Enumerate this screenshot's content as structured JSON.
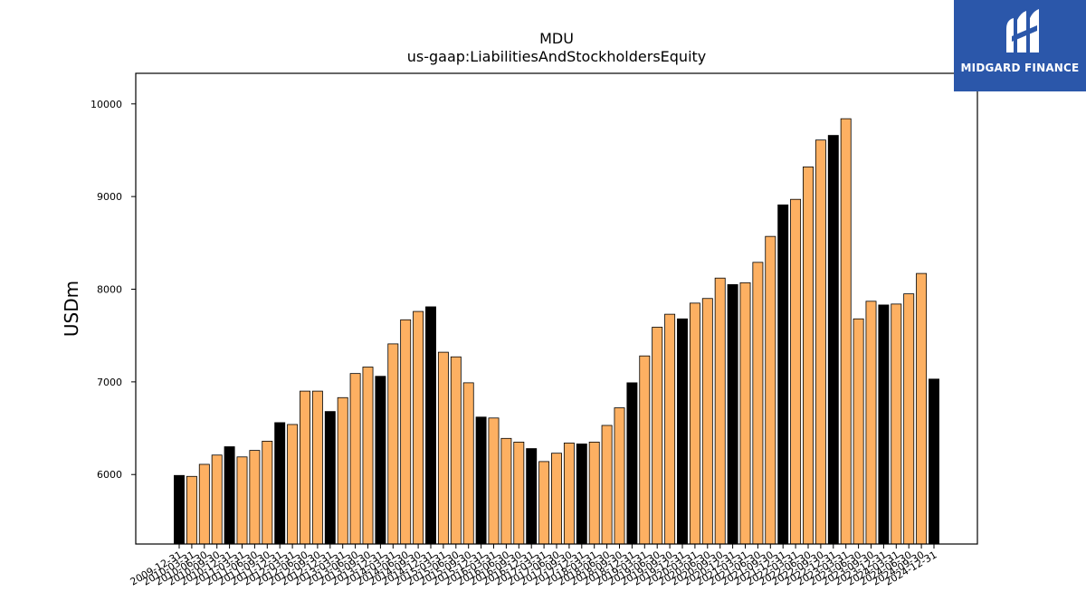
{
  "logo": {
    "brand_text": "MIDGARD FINANCE",
    "color": "#2b57aa"
  },
  "chart_data": {
    "type": "bar",
    "title": "MDU",
    "subtitle": "us-gaap:LiabilitiesAndStockholdersEquity",
    "ylabel": "USDm",
    "xlabel": "",
    "ylim": [
      5250,
      10330
    ],
    "yticks": [
      6000,
      7000,
      8000,
      9000,
      10000
    ],
    "grid": false,
    "colors": {
      "annual": "#000000",
      "quarterly": "#fdb062",
      "edge": "#000000"
    },
    "categories": [
      "2009-12-31",
      "2010-03-31",
      "2010-06-30",
      "2010-09-30",
      "2010-12-31",
      "2011-03-31",
      "2011-06-30",
      "2011-09-30",
      "2011-12-31",
      "2012-03-31",
      "2012-06-30",
      "2012-09-30",
      "2012-12-31",
      "2013-03-31",
      "2013-06-30",
      "2013-09-30",
      "2013-12-31",
      "2014-03-31",
      "2014-06-30",
      "2014-09-30",
      "2014-12-31",
      "2015-03-31",
      "2015-06-30",
      "2015-09-30",
      "2015-12-31",
      "2016-03-31",
      "2016-06-30",
      "2016-09-30",
      "2016-12-31",
      "2017-03-31",
      "2017-06-30",
      "2017-09-30",
      "2017-12-31",
      "2018-03-31",
      "2018-06-30",
      "2018-09-30",
      "2018-12-31",
      "2019-03-31",
      "2019-06-30",
      "2019-09-30",
      "2019-12-31",
      "2020-03-31",
      "2020-06-30",
      "2020-09-30",
      "2020-12-31",
      "2021-03-31",
      "2021-06-30",
      "2021-09-30",
      "2021-12-31",
      "2022-03-31",
      "2022-06-30",
      "2022-09-30",
      "2022-12-31",
      "2023-03-31",
      "2023-06-30",
      "2023-09-30",
      "2023-12-31",
      "2024-03-31",
      "2024-06-30",
      "2024-09-30",
      "2024-12-31"
    ],
    "values": [
      5990,
      5980,
      6110,
      6210,
      6300,
      6190,
      6260,
      6360,
      6560,
      6540,
      6900,
      6900,
      6680,
      6830,
      7090,
      7160,
      7060,
      7410,
      7670,
      7760,
      7810,
      7320,
      7270,
      6990,
      6620,
      6610,
      6390,
      6350,
      6280,
      6140,
      6230,
      6340,
      6330,
      6350,
      6530,
      6720,
      6990,
      7280,
      7590,
      7730,
      7680,
      7850,
      7900,
      8120,
      8050,
      8070,
      8290,
      8570,
      8910,
      8970,
      9320,
      9610,
      9660,
      9840,
      7680,
      7870,
      7830,
      7840,
      7950,
      8170,
      7030
    ],
    "is_annual": [
      true,
      false,
      false,
      false,
      true,
      false,
      false,
      false,
      true,
      false,
      false,
      false,
      true,
      false,
      false,
      false,
      true,
      false,
      false,
      false,
      true,
      false,
      false,
      false,
      true,
      false,
      false,
      false,
      true,
      false,
      false,
      false,
      true,
      false,
      false,
      false,
      true,
      false,
      false,
      false,
      true,
      false,
      false,
      false,
      true,
      false,
      false,
      false,
      true,
      false,
      false,
      false,
      true,
      false,
      false,
      false,
      true,
      false,
      false,
      false,
      true
    ]
  }
}
